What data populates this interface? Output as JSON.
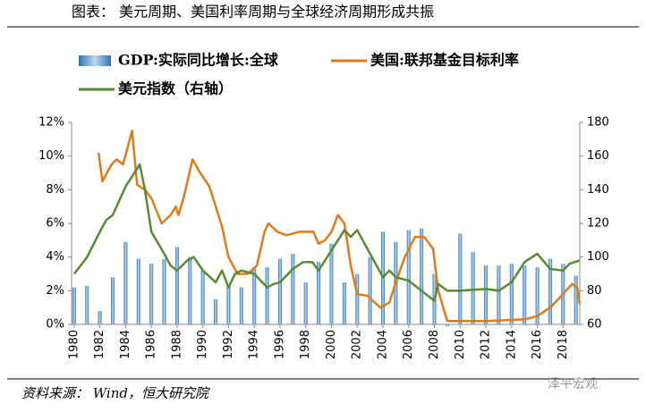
{
  "chart_data": {
    "type": "combo",
    "title": "图表：   美元周期、美国利率周期与全球经济周期形成共振",
    "source": "资料来源：  Wind，恒大研究院",
    "watermark": "泽平宏观",
    "xlim": [
      1979.8,
      2019.3
    ],
    "xticks": [
      1980,
      1982,
      1984,
      1986,
      1988,
      1990,
      1992,
      1994,
      1996,
      1998,
      2000,
      2002,
      2004,
      2006,
      2008,
      2010,
      2012,
      2014,
      2016,
      2018
    ],
    "ylim": [
      0,
      12
    ],
    "yticks": [
      {
        "value": 0,
        "label": "0%"
      },
      {
        "value": 2,
        "label": "2%"
      },
      {
        "value": 4,
        "label": "4%"
      },
      {
        "value": 6,
        "label": "6%"
      },
      {
        "value": 8,
        "label": "8%"
      },
      {
        "value": 10,
        "label": "10%"
      },
      {
        "value": 12,
        "label": "12%"
      }
    ],
    "y2lim": [
      60,
      180
    ],
    "y2ticks": [
      60,
      80,
      100,
      120,
      140,
      160,
      180
    ],
    "series": [
      {
        "name": "GDP:实际同比增长:全球",
        "type": "bar",
        "color": "#5b9bd5",
        "x": [
          1980,
          1981,
          1982,
          1983,
          1984,
          1985,
          1986,
          1987,
          1988,
          1989,
          1990,
          1991,
          1992,
          1993,
          1994,
          1995,
          1996,
          1997,
          1998,
          1999,
          2000,
          2001,
          2002,
          2003,
          2004,
          2005,
          2006,
          2007,
          2008,
          2009,
          2010,
          2011,
          2012,
          2013,
          2014,
          2015,
          2016,
          2017,
          2018,
          2019
        ],
        "values": [
          2.2,
          2.3,
          0.8,
          2.8,
          4.9,
          3.9,
          3.6,
          3.9,
          4.6,
          4.0,
          3.2,
          1.5,
          2.3,
          2.2,
          3.4,
          3.4,
          3.9,
          4.2,
          2.5,
          3.7,
          4.8,
          2.5,
          3.0,
          4.0,
          5.5,
          4.9,
          5.6,
          5.7,
          3.0,
          -0.1,
          5.4,
          4.3,
          3.5,
          3.5,
          3.6,
          3.5,
          3.4,
          3.9,
          3.6,
          2.9
        ]
      },
      {
        "name": "美国:联邦基金目标利率",
        "type": "line",
        "color": "#e07b1a",
        "x": [
          1981.9,
          1982.2,
          1982.9,
          1983.3,
          1983.8,
          1984.5,
          1984.9,
          1985.5,
          1986,
          1986.8,
          1987.5,
          1987.9,
          1988.1,
          1988.5,
          1989.2,
          1989.8,
          1990.5,
          1990.8,
          1991.5,
          1992,
          1992.7,
          1993.5,
          1994.2,
          1994.8,
          1995.1,
          1995.8,
          1996.5,
          1997.5,
          1998.6,
          1999,
          1999.5,
          2000,
          2000.5,
          2001,
          2001.5,
          2002,
          2002.8,
          2003.8,
          2004.5,
          2005,
          2005.7,
          2006.5,
          2007.2,
          2007.9,
          2008.3,
          2009,
          2012,
          2015,
          2016,
          2017,
          2018,
          2018.7,
          2019.1,
          2019.3
        ],
        "values": [
          10.2,
          8.5,
          9.5,
          9.8,
          9.5,
          11.5,
          8.3,
          8.0,
          7.5,
          6.0,
          6.5,
          7.0,
          6.5,
          7.5,
          9.8,
          9.0,
          8.2,
          7.5,
          5.8,
          4.0,
          3.0,
          3.0,
          3.5,
          5.5,
          6.0,
          5.5,
          5.3,
          5.5,
          5.5,
          4.8,
          5.0,
          5.5,
          6.5,
          6.0,
          3.5,
          1.8,
          1.7,
          1.0,
          1.3,
          2.5,
          4.0,
          5.2,
          5.2,
          4.5,
          2.0,
          0.2,
          0.2,
          0.3,
          0.5,
          1.0,
          1.8,
          2.4,
          2.2,
          1.2
        ]
      },
      {
        "name": "美元指数（右轴）",
        "type": "line",
        "axis": "y2",
        "color": "#5a8a32",
        "x": [
          1980,
          1981,
          1982,
          1982.5,
          1983,
          1984,
          1985.1,
          1985.5,
          1986,
          1987,
          1987.5,
          1988,
          1988.8,
          1989.3,
          1990,
          1991,
          1991.5,
          1992,
          1992.5,
          1993,
          1994,
          1995,
          1995.5,
          1996,
          1997,
          1997.8,
          1998.5,
          1999,
          2000,
          2001,
          2001.5,
          2002,
          2003,
          2004,
          2004.5,
          2005,
          2006,
          2007,
          2008,
          2008.3,
          2009,
          2010,
          2012,
          2013,
          2014,
          2015,
          2016,
          2017,
          2018,
          2018.5,
          2019.3
        ],
        "values": [
          90,
          100,
          115,
          122,
          125,
          142,
          155,
          140,
          115,
          102,
          95,
          92,
          98,
          100,
          92,
          85,
          92,
          82,
          90,
          92,
          90,
          82,
          84,
          85,
          93,
          97,
          97,
          92,
          104,
          116,
          112,
          116,
          102,
          88,
          92,
          88,
          86,
          80,
          74,
          84,
          80,
          80,
          81,
          80,
          85,
          97,
          102,
          93,
          92,
          96,
          98
        ]
      }
    ]
  }
}
